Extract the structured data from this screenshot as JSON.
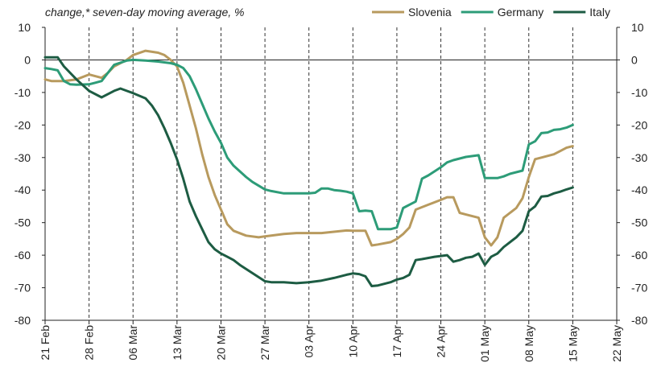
{
  "chart_data": {
    "type": "line",
    "subtitle": "change,* seven-day moving average, %",
    "ylim": [
      -80,
      10
    ],
    "yticks": [
      10,
      0,
      -10,
      -20,
      -30,
      -40,
      -50,
      -60,
      -70,
      -80
    ],
    "right_axis_duplicate": true,
    "xlim": [
      "2020-02-21",
      "2020-05-22"
    ],
    "xtick_labels": [
      "21 Feb",
      "28 Feb",
      "06 Mar",
      "13 Mar",
      "20 Mar",
      "27 Mar",
      "03 Apr",
      "10 Apr",
      "17 Apr",
      "24 Apr",
      "01 May",
      "08 May",
      "15 May",
      "22 May"
    ],
    "vertical_gridlines": "dashed at weekly ticks",
    "horizontal_gridlines": false,
    "legend_position": "top-right",
    "series": [
      {
        "name": "Slovenia",
        "color": "#b89a5e",
        "points": [
          [
            "2020-02-21",
            -6
          ],
          [
            "2020-02-22",
            -6.5
          ],
          [
            "2020-02-24",
            -6.5
          ],
          [
            "2020-02-26",
            -6
          ],
          [
            "2020-02-28",
            -4.5
          ],
          [
            "2020-03-01",
            -5.5
          ],
          [
            "2020-03-02",
            -4
          ],
          [
            "2020-03-03",
            -2
          ],
          [
            "2020-03-05",
            0
          ],
          [
            "2020-03-06",
            1.5
          ],
          [
            "2020-03-08",
            2.8
          ],
          [
            "2020-03-10",
            2.2
          ],
          [
            "2020-03-11",
            1.5
          ],
          [
            "2020-03-12",
            0
          ],
          [
            "2020-03-13",
            -2
          ],
          [
            "2020-03-14",
            -7
          ],
          [
            "2020-03-15",
            -14
          ],
          [
            "2020-03-16",
            -21
          ],
          [
            "2020-03-17",
            -29
          ],
          [
            "2020-03-18",
            -36
          ],
          [
            "2020-03-19",
            -41.5
          ],
          [
            "2020-03-20",
            -46
          ],
          [
            "2020-03-21",
            -50.5
          ],
          [
            "2020-03-22",
            -52.5
          ],
          [
            "2020-03-24",
            -54
          ],
          [
            "2020-03-26",
            -54.5
          ],
          [
            "2020-03-27",
            -54.2
          ],
          [
            "2020-03-28",
            -54
          ],
          [
            "2020-03-30",
            -53.5
          ],
          [
            "2020-04-01",
            -53.2
          ],
          [
            "2020-04-03",
            -53.2
          ],
          [
            "2020-04-05",
            -53.2
          ],
          [
            "2020-04-07",
            -52.8
          ],
          [
            "2020-04-09",
            -52.4
          ],
          [
            "2020-04-10",
            -52.5
          ],
          [
            "2020-04-12",
            -52.5
          ],
          [
            "2020-04-13",
            -57
          ],
          [
            "2020-04-14",
            -56.7
          ],
          [
            "2020-04-16",
            -56
          ],
          [
            "2020-04-17",
            -55
          ],
          [
            "2020-04-18",
            -53.5
          ],
          [
            "2020-04-19",
            -51.5
          ],
          [
            "2020-04-20",
            -46
          ],
          [
            "2020-04-22",
            -44.5
          ],
          [
            "2020-04-24",
            -43
          ],
          [
            "2020-04-25",
            -42.2
          ],
          [
            "2020-04-26",
            -42.2
          ],
          [
            "2020-04-27",
            -47
          ],
          [
            "2020-04-28",
            -47.5
          ],
          [
            "2020-04-30",
            -48.5
          ],
          [
            "2020-05-01",
            -54.5
          ],
          [
            "2020-05-02",
            -57
          ],
          [
            "2020-05-03",
            -54.5
          ],
          [
            "2020-05-04",
            -48.5
          ],
          [
            "2020-05-06",
            -45.5
          ],
          [
            "2020-05-07",
            -42.5
          ],
          [
            "2020-05-08",
            -36
          ],
          [
            "2020-05-09",
            -30.5
          ],
          [
            "2020-05-10",
            -30
          ],
          [
            "2020-05-12",
            -29
          ],
          [
            "2020-05-13",
            -28
          ],
          [
            "2020-05-14",
            -27
          ],
          [
            "2020-05-15",
            -26.5
          ]
        ]
      },
      {
        "name": "Germany",
        "color": "#2d9c78",
        "points": [
          [
            "2020-02-21",
            -2.5
          ],
          [
            "2020-02-22",
            -2.8
          ],
          [
            "2020-02-23",
            -3.2
          ],
          [
            "2020-02-24",
            -6.5
          ],
          [
            "2020-02-25",
            -7.5
          ],
          [
            "2020-02-26",
            -7.6
          ],
          [
            "2020-02-28",
            -7.5
          ],
          [
            "2020-02-29",
            -7
          ],
          [
            "2020-03-01",
            -6.5
          ],
          [
            "2020-03-02",
            -4
          ],
          [
            "2020-03-03",
            -1.5
          ],
          [
            "2020-03-05",
            -0.2
          ],
          [
            "2020-03-06",
            0
          ],
          [
            "2020-03-08",
            -0.2
          ],
          [
            "2020-03-10",
            -0.5
          ],
          [
            "2020-03-12",
            -1
          ],
          [
            "2020-03-13",
            -1.5
          ],
          [
            "2020-03-14",
            -2.5
          ],
          [
            "2020-03-15",
            -5
          ],
          [
            "2020-03-16",
            -9
          ],
          [
            "2020-03-17",
            -13.5
          ],
          [
            "2020-03-18",
            -18
          ],
          [
            "2020-03-19",
            -22
          ],
          [
            "2020-03-20",
            -25.5
          ],
          [
            "2020-03-21",
            -30
          ],
          [
            "2020-03-22",
            -32.5
          ],
          [
            "2020-03-24",
            -36
          ],
          [
            "2020-03-25",
            -37.5
          ],
          [
            "2020-03-27",
            -39.8
          ],
          [
            "2020-03-28",
            -40.3
          ],
          [
            "2020-03-30",
            -41
          ],
          [
            "2020-04-01",
            -41
          ],
          [
            "2020-04-03",
            -41
          ],
          [
            "2020-04-04",
            -40.8
          ],
          [
            "2020-04-05",
            -39.5
          ],
          [
            "2020-04-06",
            -39.5
          ],
          [
            "2020-04-07",
            -40
          ],
          [
            "2020-04-08",
            -40.2
          ],
          [
            "2020-04-09",
            -40.5
          ],
          [
            "2020-04-10",
            -41
          ],
          [
            "2020-04-11",
            -46.5
          ],
          [
            "2020-04-12",
            -46.3
          ],
          [
            "2020-04-13",
            -46.5
          ],
          [
            "2020-04-14",
            -52
          ],
          [
            "2020-04-16",
            -52
          ],
          [
            "2020-04-17",
            -51.5
          ],
          [
            "2020-04-18",
            -45.5
          ],
          [
            "2020-04-19",
            -44.5
          ],
          [
            "2020-04-20",
            -43.5
          ],
          [
            "2020-04-21",
            -36.5
          ],
          [
            "2020-04-22",
            -35.5
          ],
          [
            "2020-04-24",
            -33
          ],
          [
            "2020-04-25",
            -31.5
          ],
          [
            "2020-04-26",
            -30.8
          ],
          [
            "2020-04-27",
            -30.3
          ],
          [
            "2020-04-28",
            -29.8
          ],
          [
            "2020-04-30",
            -29.3
          ],
          [
            "2020-05-01",
            -36.3
          ],
          [
            "2020-05-02",
            -36.3
          ],
          [
            "2020-05-03",
            -36.3
          ],
          [
            "2020-05-04",
            -35.8
          ],
          [
            "2020-05-05",
            -35
          ],
          [
            "2020-05-07",
            -34
          ],
          [
            "2020-05-08",
            -26
          ],
          [
            "2020-05-09",
            -25
          ],
          [
            "2020-05-10",
            -22.5
          ],
          [
            "2020-05-11",
            -22.3
          ],
          [
            "2020-05-12",
            -21.5
          ],
          [
            "2020-05-13",
            -21.3
          ],
          [
            "2020-05-14",
            -20.8
          ],
          [
            "2020-05-15",
            -20
          ]
        ]
      },
      {
        "name": "Italy",
        "color": "#1d5c43",
        "points": [
          [
            "2020-02-21",
            0.8
          ],
          [
            "2020-02-22",
            0.8
          ],
          [
            "2020-02-23",
            0.8
          ],
          [
            "2020-02-24",
            -2
          ],
          [
            "2020-02-26",
            -6
          ],
          [
            "2020-02-28",
            -9.5
          ],
          [
            "2020-03-01",
            -11.5
          ],
          [
            "2020-03-03",
            -9.5
          ],
          [
            "2020-03-04",
            -8.8
          ],
          [
            "2020-03-05",
            -9.5
          ],
          [
            "2020-03-06",
            -10.2
          ],
          [
            "2020-03-08",
            -11.8
          ],
          [
            "2020-03-09",
            -14
          ],
          [
            "2020-03-10",
            -17
          ],
          [
            "2020-03-11",
            -21
          ],
          [
            "2020-03-12",
            -25.5
          ],
          [
            "2020-03-13",
            -30.5
          ],
          [
            "2020-03-14",
            -36.5
          ],
          [
            "2020-03-15",
            -43.5
          ],
          [
            "2020-03-16",
            -48
          ],
          [
            "2020-03-17",
            -52
          ],
          [
            "2020-03-18",
            -56
          ],
          [
            "2020-03-19",
            -58.2
          ],
          [
            "2020-03-20",
            -59.5
          ],
          [
            "2020-03-21",
            -60.5
          ],
          [
            "2020-03-22",
            -61.5
          ],
          [
            "2020-03-23",
            -63
          ],
          [
            "2020-03-25",
            -65.5
          ],
          [
            "2020-03-27",
            -68
          ],
          [
            "2020-03-28",
            -68.3
          ],
          [
            "2020-03-30",
            -68.3
          ],
          [
            "2020-04-01",
            -68.6
          ],
          [
            "2020-04-03",
            -68.3
          ],
          [
            "2020-04-05",
            -67.8
          ],
          [
            "2020-04-07",
            -67
          ],
          [
            "2020-04-09",
            -66
          ],
          [
            "2020-04-10",
            -65.6
          ],
          [
            "2020-04-11",
            -65.8
          ],
          [
            "2020-04-12",
            -66.5
          ],
          [
            "2020-04-13",
            -69.5
          ],
          [
            "2020-04-14",
            -69.3
          ],
          [
            "2020-04-15",
            -68.8
          ],
          [
            "2020-04-16",
            -68.3
          ],
          [
            "2020-04-17",
            -67.5
          ],
          [
            "2020-04-18",
            -67
          ],
          [
            "2020-04-19",
            -66
          ],
          [
            "2020-04-20",
            -61.5
          ],
          [
            "2020-04-21",
            -61.2
          ],
          [
            "2020-04-23",
            -60.5
          ],
          [
            "2020-04-25",
            -60
          ],
          [
            "2020-04-26",
            -62
          ],
          [
            "2020-04-27",
            -61.5
          ],
          [
            "2020-04-28",
            -60.8
          ],
          [
            "2020-04-29",
            -60.5
          ],
          [
            "2020-04-30",
            -59.5
          ],
          [
            "2020-05-01",
            -63
          ],
          [
            "2020-05-02",
            -60.5
          ],
          [
            "2020-05-03",
            -59.5
          ],
          [
            "2020-05-04",
            -57.5
          ],
          [
            "2020-05-06",
            -54.5
          ],
          [
            "2020-05-07",
            -52.5
          ],
          [
            "2020-05-08",
            -46.5
          ],
          [
            "2020-05-09",
            -45
          ],
          [
            "2020-05-10",
            -42
          ],
          [
            "2020-05-11",
            -41.8
          ],
          [
            "2020-05-12",
            -41
          ],
          [
            "2020-05-13",
            -40.5
          ],
          [
            "2020-05-14",
            -39.8
          ],
          [
            "2020-05-15",
            -39.2
          ]
        ]
      }
    ]
  }
}
